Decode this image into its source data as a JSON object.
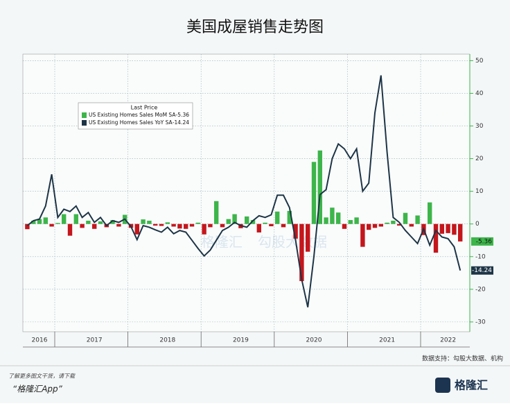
{
  "chart_data": {
    "type": "combo",
    "title": "美国成屋销售走势图",
    "legend_title": "Last Price",
    "categories": [
      null,
      null,
      "2016",
      null,
      null,
      null,
      null,
      null,
      null,
      null,
      null,
      "2017",
      null,
      null,
      null,
      null,
      null,
      null,
      null,
      null,
      null,
      null,
      null,
      "2018",
      null,
      null,
      null,
      null,
      null,
      null,
      null,
      null,
      null,
      null,
      null,
      "2019",
      null,
      null,
      null,
      null,
      null,
      null,
      null,
      null,
      null,
      null,
      null,
      "2020",
      null,
      null,
      null,
      null,
      null,
      null,
      null,
      null,
      null,
      null,
      null,
      "2021",
      null,
      null,
      null,
      null,
      null,
      null,
      null,
      null,
      null,
      "2022",
      null,
      null
    ],
    "series": [
      {
        "name": "US Existing Homes Sales MoM SA",
        "type": "bar",
        "color": "#3db54a",
        "neg_color": "#c4161c",
        "values": [
          -1.6,
          1.0,
          1.5,
          2.0,
          -0.8,
          0.3,
          3.0,
          -3.6,
          3.0,
          -1.2,
          1.0,
          -1.5,
          0.8,
          -1.0,
          1.2,
          -0.8,
          2.8,
          -1.2,
          -3.2,
          1.4,
          1.0,
          -0.5,
          -0.6,
          0.5,
          -0.8,
          -1.4,
          -1.5,
          -0.8,
          0.4,
          -3.2,
          -1.0,
          7.0,
          -1.0,
          1.5,
          3.0,
          -1.3,
          2.3,
          1.2,
          -2.6,
          0.4,
          -0.7,
          3.8,
          -1.0,
          4.0,
          -4.5,
          -17.5,
          -8.5,
          19.0,
          22.5,
          2.0,
          5.0,
          3.5,
          -1.5,
          1.2,
          2.0,
          -7.0,
          -1.8,
          -1.2,
          -0.8,
          0.4,
          1.0,
          -0.5,
          3.4,
          -0.8,
          2.6,
          -3.4,
          6.6,
          -8.8,
          -3.0,
          -2.8,
          -3.3,
          -5.36
        ]
      },
      {
        "name": "US Existing Homes Sales YoY SA",
        "type": "line",
        "color": "#1d3446",
        "values": [
          -0.5,
          1.0,
          1.5,
          5.5,
          15.2,
          2.0,
          4.5,
          3.8,
          5.5,
          2.0,
          3.5,
          0.5,
          2.0,
          -0.5,
          1.0,
          0.5,
          1.5,
          -0.8,
          -4.8,
          -0.5,
          -1.0,
          -1.8,
          -2.5,
          -1.0,
          -3.0,
          -2.0,
          -2.5,
          -5.0,
          -7.5,
          -9.8,
          -8.0,
          -5.0,
          -2.0,
          -1.0,
          0.5,
          -0.5,
          -1.0,
          1.0,
          2.5,
          2.0,
          2.8,
          8.8,
          8.8,
          5.0,
          -5.0,
          -17.0,
          -25.5,
          -10.0,
          9.0,
          10.5,
          20.0,
          24.5,
          23.0,
          20.0,
          23.0,
          10.0,
          12.5,
          34.0,
          45.5,
          22.0,
          2.0,
          0.5,
          -2.0,
          -4.0,
          -6.0,
          -1.5,
          -6.5,
          -2.0,
          -4.0,
          -4.5,
          -7.0,
          -14.24
        ]
      }
    ],
    "ylim": [
      -33,
      52
    ],
    "yticks": [
      -30,
      -20,
      -10,
      0,
      10,
      20,
      30,
      40,
      50
    ],
    "grid": true,
    "y_axis_side": "right"
  },
  "watermark": [
    "格隆汇",
    "勾股大数据"
  ],
  "source": "数据支持：勾股大数据、机构",
  "footer": {
    "line1": "了解更多图文干货，请下载",
    "line2": "“格隆汇App”",
    "logo": "格隆汇"
  }
}
